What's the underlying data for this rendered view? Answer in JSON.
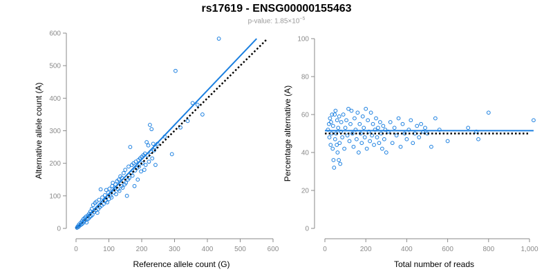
{
  "figure": {
    "title": "rs17619 - ENSG00000155463",
    "subtitle_prefix": "p-value: 1.85×10",
    "subtitle_exponent": "−5"
  },
  "colors": {
    "points": "#1a7fe0",
    "fit_line": "#1a7fe0",
    "reference_line": "#000000",
    "axis": "#8a8a8a"
  },
  "chart_data": [
    {
      "type": "scatter",
      "xlabel": "Reference allele count (G)",
      "ylabel": "Alternative allele count (A)",
      "xlim": [
        0,
        600
      ],
      "ylim": [
        0,
        600
      ],
      "xticks": [
        0,
        100,
        200,
        300,
        400,
        500,
        600
      ],
      "yticks": [
        0,
        100,
        200,
        300,
        400,
        500,
        600
      ],
      "xtick_labels": [
        "0",
        "100",
        "200",
        "300",
        "400",
        "500",
        "600"
      ],
      "ytick_labels": [
        "0",
        "100",
        "200",
        "300",
        "400",
        "500",
        "600"
      ],
      "fit_line": {
        "x": [
          0,
          550
        ],
        "y": [
          0,
          583
        ]
      },
      "reference_line": {
        "x": [
          0,
          580
        ],
        "y": [
          0,
          580
        ]
      },
      "points": [
        [
          3,
          2
        ],
        [
          5,
          6
        ],
        [
          8,
          5
        ],
        [
          9,
          12
        ],
        [
          12,
          9
        ],
        [
          14,
          17
        ],
        [
          16,
          12
        ],
        [
          18,
          22
        ],
        [
          20,
          15
        ],
        [
          22,
          28
        ],
        [
          24,
          20
        ],
        [
          26,
          32
        ],
        [
          28,
          25
        ],
        [
          30,
          36
        ],
        [
          32,
          18
        ],
        [
          34,
          28
        ],
        [
          36,
          40
        ],
        [
          38,
          30
        ],
        [
          40,
          45
        ],
        [
          42,
          35
        ],
        [
          44,
          52
        ],
        [
          46,
          38
        ],
        [
          48,
          60
        ],
        [
          50,
          42
        ],
        [
          52,
          72
        ],
        [
          55,
          50
        ],
        [
          58,
          78
        ],
        [
          60,
          55
        ],
        [
          62,
          82
        ],
        [
          65,
          48
        ],
        [
          68,
          60
        ],
        [
          70,
          88
        ],
        [
          72,
          65
        ],
        [
          75,
          120
        ],
        [
          78,
          70
        ],
        [
          80,
          95
        ],
        [
          84,
          75
        ],
        [
          88,
          102
        ],
        [
          90,
          85
        ],
        [
          92,
          118
        ],
        [
          95,
          80
        ],
        [
          98,
          110
        ],
        [
          100,
          90
        ],
        [
          102,
          122
        ],
        [
          105,
          100
        ],
        [
          108,
          95
        ],
        [
          110,
          130
        ],
        [
          112,
          140
        ],
        [
          115,
          110
        ],
        [
          118,
          125
        ],
        [
          120,
          135
        ],
        [
          122,
          105
        ],
        [
          125,
          145
        ],
        [
          128,
          120
        ],
        [
          130,
          150
        ],
        [
          132,
          115
        ],
        [
          135,
          160
        ],
        [
          138,
          130
        ],
        [
          140,
          155
        ],
        [
          142,
          125
        ],
        [
          145,
          170
        ],
        [
          148,
          135
        ],
        [
          150,
          180
        ],
        [
          152,
          140
        ],
        [
          155,
          100
        ],
        [
          158,
          150
        ],
        [
          160,
          190
        ],
        [
          162,
          155
        ],
        [
          165,
          250
        ],
        [
          168,
          170
        ],
        [
          170,
          195
        ],
        [
          172,
          162
        ],
        [
          175,
          200
        ],
        [
          178,
          130
        ],
        [
          180,
          178
        ],
        [
          182,
          205
        ],
        [
          185,
          185
        ],
        [
          188,
          150
        ],
        [
          190,
          210
        ],
        [
          192,
          190
        ],
        [
          195,
          215
        ],
        [
          198,
          175
        ],
        [
          200,
          220
        ],
        [
          202,
          200
        ],
        [
          205,
          225
        ],
        [
          208,
          180
        ],
        [
          210,
          230
        ],
        [
          212,
          195
        ],
        [
          215,
          265
        ],
        [
          218,
          225
        ],
        [
          220,
          255
        ],
        [
          222,
          205
        ],
        [
          225,
          318
        ],
        [
          228,
          235
        ],
        [
          230,
          305
        ],
        [
          232,
          215
        ],
        [
          235,
          260
        ],
        [
          238,
          240
        ],
        [
          240,
          250
        ],
        [
          242,
          195
        ],
        [
          248,
          260
        ],
        [
          270,
          282
        ],
        [
          292,
          228
        ],
        [
          303,
          484
        ],
        [
          318,
          310
        ],
        [
          340,
          330
        ],
        [
          355,
          385
        ],
        [
          370,
          380
        ],
        [
          385,
          350
        ],
        [
          435,
          583
        ]
      ]
    },
    {
      "type": "scatter",
      "xlabel": "Total number of reads",
      "ylabel": "Percentage alternative (A)",
      "xlim": [
        0,
        1000
      ],
      "ylim": [
        0,
        100
      ],
      "xticks": [
        0,
        200,
        400,
        600,
        800,
        1000
      ],
      "yticks": [
        0,
        20,
        40,
        60,
        80,
        100
      ],
      "xtick_labels": [
        "0",
        "200",
        "400",
        "600",
        "800",
        "1,000"
      ],
      "ytick_labels": [
        "0",
        "20",
        "40",
        "60",
        "80",
        "100"
      ],
      "fit_line": {
        "x": [
          0,
          1020
        ],
        "y": [
          51.5,
          51.5
        ]
      },
      "reference_line": {
        "x": [
          0,
          1000
        ],
        "y": [
          50,
          50
        ]
      },
      "points": [
        [
          15,
          52
        ],
        [
          20,
          55
        ],
        [
          22,
          48
        ],
        [
          25,
          58
        ],
        [
          28,
          44
        ],
        [
          30,
          56
        ],
        [
          32,
          50
        ],
        [
          35,
          60
        ],
        [
          38,
          42
        ],
        [
          40,
          54
        ],
        [
          42,
          36
        ],
        [
          45,
          32
        ],
        [
          48,
          60
        ],
        [
          50,
          47
        ],
        [
          52,
          62
        ],
        [
          55,
          50
        ],
        [
          58,
          44
        ],
        [
          60,
          57
        ],
        [
          62,
          40
        ],
        [
          65,
          53
        ],
        [
          68,
          36
        ],
        [
          70,
          59
        ],
        [
          72,
          45
        ],
        [
          75,
          34
        ],
        [
          78,
          51
        ],
        [
          80,
          56
        ],
        [
          85,
          48
        ],
        [
          90,
          60
        ],
        [
          95,
          42
        ],
        [
          100,
          53
        ],
        [
          105,
          57
        ],
        [
          110,
          49
        ],
        [
          115,
          63
        ],
        [
          120,
          46
        ],
        [
          125,
          55
        ],
        [
          130,
          62
        ],
        [
          135,
          50
        ],
        [
          140,
          43
        ],
        [
          145,
          58
        ],
        [
          150,
          52
        ],
        [
          155,
          47
        ],
        [
          160,
          61
        ],
        [
          165,
          40
        ],
        [
          170,
          55
        ],
        [
          175,
          50
        ],
        [
          180,
          45
        ],
        [
          185,
          59
        ],
        [
          190,
          53
        ],
        [
          195,
          48
        ],
        [
          200,
          63
        ],
        [
          205,
          42
        ],
        [
          210,
          57
        ],
        [
          215,
          51
        ],
        [
          220,
          46
        ],
        [
          225,
          61
        ],
        [
          230,
          49
        ],
        [
          235,
          55
        ],
        [
          240,
          44
        ],
        [
          245,
          52
        ],
        [
          250,
          58
        ],
        [
          255,
          48
        ],
        [
          260,
          53
        ],
        [
          265,
          45
        ],
        [
          270,
          56
        ],
        [
          275,
          50
        ],
        [
          280,
          42
        ],
        [
          285,
          54
        ],
        [
          290,
          47
        ],
        [
          295,
          52
        ],
        [
          300,
          40
        ],
        [
          310,
          51
        ],
        [
          320,
          56
        ],
        [
          330,
          45
        ],
        [
          340,
          53
        ],
        [
          350,
          49
        ],
        [
          360,
          58
        ],
        [
          370,
          43
        ],
        [
          380,
          55
        ],
        [
          390,
          50
        ],
        [
          400,
          47
        ],
        [
          410,
          52
        ],
        [
          420,
          57
        ],
        [
          430,
          45
        ],
        [
          440,
          50
        ],
        [
          450,
          54
        ],
        [
          460,
          48
        ],
        [
          470,
          55
        ],
        [
          480,
          51
        ],
        [
          490,
          53
        ],
        [
          500,
          50
        ],
        [
          520,
          43
        ],
        [
          540,
          58
        ],
        [
          560,
          52
        ],
        [
          600,
          46
        ],
        [
          700,
          53
        ],
        [
          740,
          51
        ],
        [
          750,
          47
        ],
        [
          800,
          61
        ],
        [
          1020,
          57
        ]
      ]
    }
  ]
}
